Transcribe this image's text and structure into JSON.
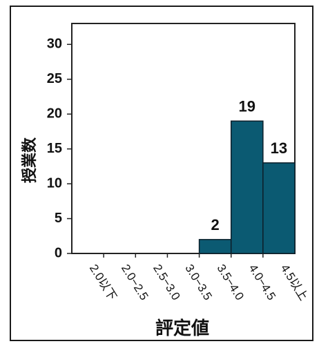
{
  "chart_data": {
    "type": "bar",
    "categories": [
      "2.0以下",
      "2.0−2.5",
      "2.5−3.0",
      "3.0−3.5",
      "3.5−4.0",
      "4.0−4.5",
      "4.5以上"
    ],
    "values": [
      0,
      0,
      0,
      0,
      2,
      19,
      13
    ],
    "data_labels": [
      "",
      "",
      "",
      "",
      "2",
      "19",
      "13"
    ],
    "ylabel": "授業数",
    "xlabel": "評定値",
    "ylim": [
      0,
      33
    ],
    "yticks": [
      0,
      5,
      10,
      15,
      20,
      25,
      30
    ],
    "bar_color": "#0b5a72",
    "grid": false
  }
}
